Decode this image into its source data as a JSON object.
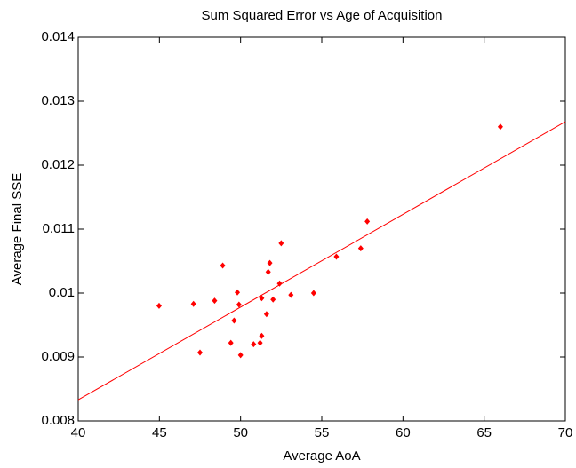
{
  "chart_data": {
    "type": "scatter",
    "title": "Sum Squared Error vs Age of Acquisition",
    "xlabel": "Average AoA",
    "ylabel": "Average Final SSE",
    "x": [
      44.98,
      47.1,
      48.4,
      48.9,
      47.5,
      49.4,
      49.6,
      49.8,
      49.9,
      50.0,
      50.8,
      51.2,
      51.3,
      51.3,
      51.6,
      51.7,
      51.8,
      52.0,
      52.4,
      52.5,
      53.1,
      54.5,
      55.9,
      57.4,
      57.8,
      66.0
    ],
    "y": [
      0.0098,
      0.00983,
      0.00988,
      0.01043,
      0.00907,
      0.00922,
      0.00957,
      0.01001,
      0.00982,
      0.00903,
      0.0092,
      0.00922,
      0.00933,
      0.00992,
      0.00967,
      0.01033,
      0.01047,
      0.0099,
      0.01015,
      0.01078,
      0.00997,
      0.01,
      0.01057,
      0.0107,
      0.01112,
      0.0126
    ],
    "color": "#ff0000",
    "fit": {
      "x": [
        40,
        70
      ],
      "y": [
        0.00833,
        0.01268
      ],
      "color": "#ff0000"
    },
    "xlim": [
      40,
      70
    ],
    "xticks": [
      40,
      45,
      50,
      55,
      60,
      65,
      70
    ],
    "ylim": [
      0.008,
      0.014
    ],
    "yticks": [
      0.008,
      0.009,
      0.01,
      0.011,
      0.012,
      0.013,
      0.014
    ]
  }
}
